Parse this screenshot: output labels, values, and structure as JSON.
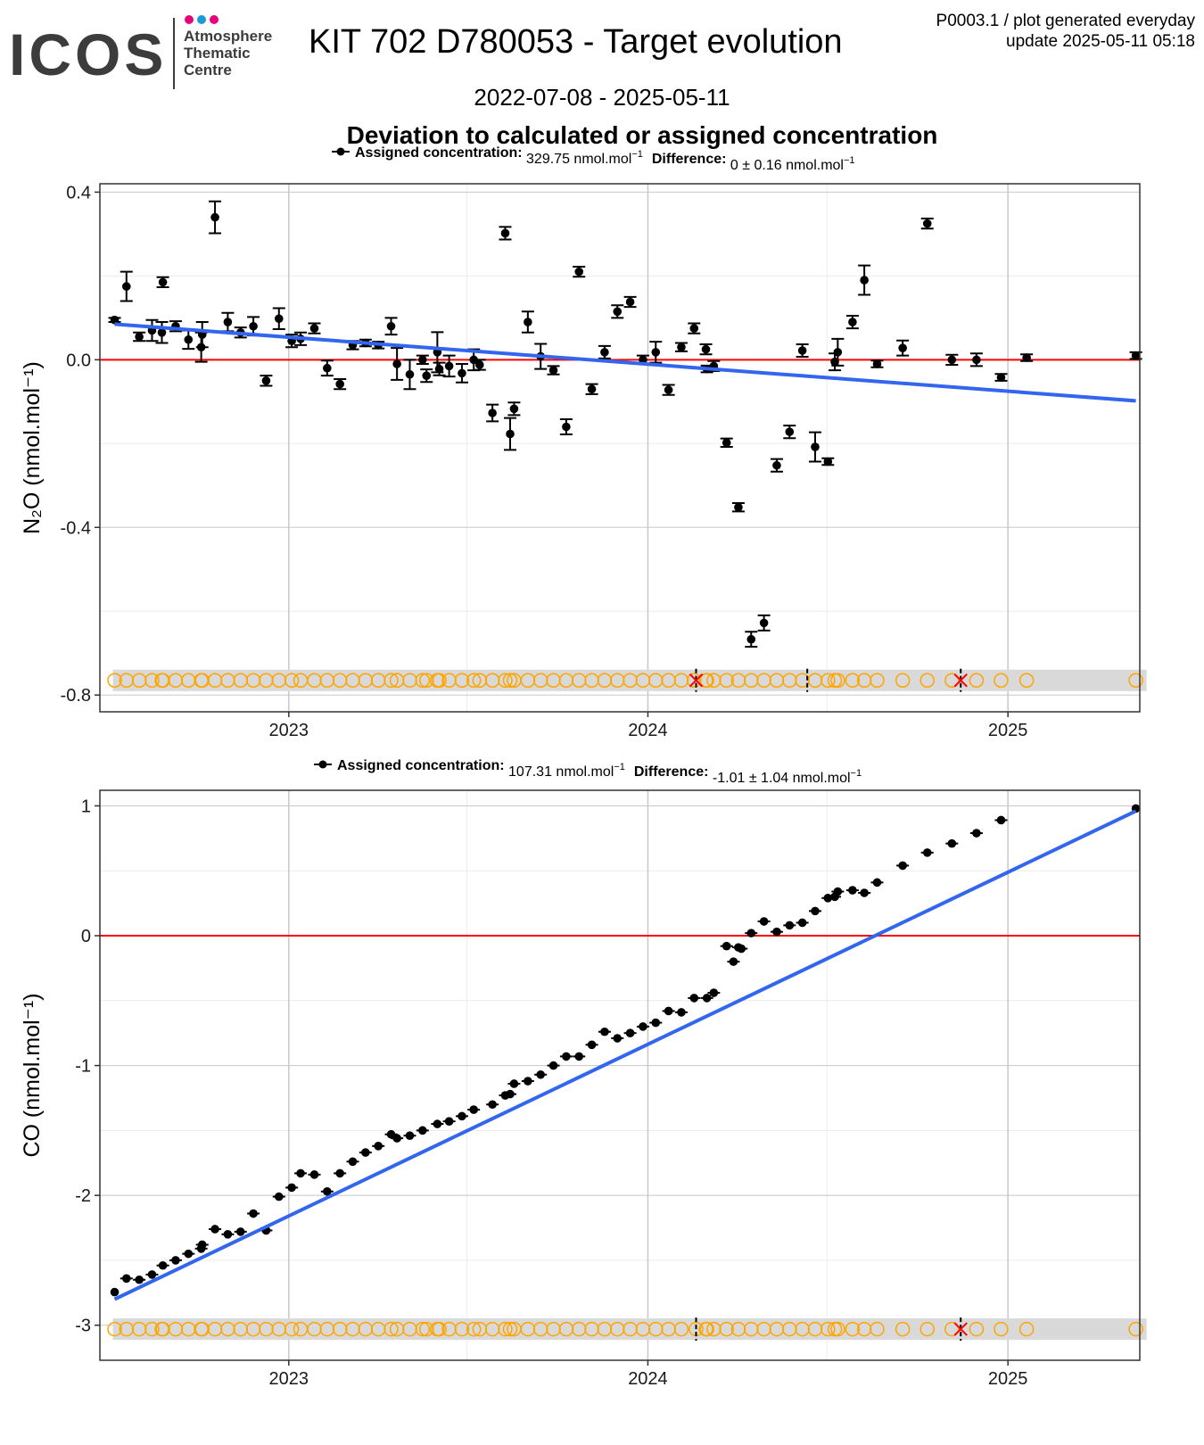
{
  "header": {
    "logo_text": "ICOS",
    "logo_sub": [
      "Atmosphere",
      "Thematic",
      "Centre"
    ],
    "logo_dot_colors": [
      "#e6007e",
      "#1a9ad6",
      "#e6007e"
    ],
    "title": "KIT 702 D780053 - Target evolution",
    "date_range": "2022-07-08 - 2025-05-11",
    "section_title": "Deviation to calculated or assigned concentration",
    "info_line1": "P0003.1 / plot generated everyday",
    "info_line2": "update  2025-05-11 05:18"
  },
  "colors": {
    "points": "#000000",
    "zero_line": "#ff0000",
    "trend_line": "#3366ee",
    "flag_circle": "#ffa500",
    "flag_cross": "#ff0000",
    "flag_band": "#d9d9d9",
    "grid_major": "#c8c8c8",
    "grid_minor": "#ececec"
  },
  "chart_data": [
    {
      "type": "scatter",
      "ylabel": "N₂O (nmol.mol⁻¹)",
      "legend": {
        "assigned_label": "Assigned concentration:",
        "assigned_value": "329.75 nmol.mol",
        "difference_label": "Difference:",
        "difference_value": "0 ± 0.16 nmol.mol",
        "unit_exponent": "−1"
      },
      "xlim": [
        "2022-06-23",
        "2025-05-15"
      ],
      "ylim": [
        -0.84,
        0.42
      ],
      "x_ticks": [
        "2023",
        "2024",
        "2025"
      ],
      "y_ticks": [
        0.4,
        0.0,
        -0.4,
        -0.8
      ],
      "y_tick_labels": [
        "0.4",
        "0.0",
        "-0.4",
        "-0.8"
      ],
      "flag_y": -0.765,
      "trend": {
        "start": [
          "2022-07-08",
          0.085
        ],
        "end": [
          "2025-05-11",
          -0.098
        ]
      },
      "series": [
        {
          "values": [
            [
              "2022-07-08",
              0.095,
              0.005
            ],
            [
              "2022-07-20",
              0.175,
              0.035
            ],
            [
              "2022-08-02",
              0.055,
              0.01
            ],
            [
              "2022-08-15",
              0.07,
              0.025
            ],
            [
              "2022-08-25",
              0.065,
              0.025
            ],
            [
              "2022-08-26",
              0.185,
              0.012
            ],
            [
              "2022-09-08",
              0.08,
              0.012
            ],
            [
              "2022-09-21",
              0.048,
              0.022
            ],
            [
              "2022-10-04",
              0.03,
              0.035
            ],
            [
              "2022-10-05",
              0.06,
              0.03
            ],
            [
              "2022-10-18",
              0.34,
              0.038
            ],
            [
              "2022-10-31",
              0.09,
              0.022
            ],
            [
              "2022-11-13",
              0.065,
              0.012
            ],
            [
              "2022-11-26",
              0.08,
              0.022
            ],
            [
              "2022-12-09",
              -0.05,
              0.012
            ],
            [
              "2022-12-22",
              0.098,
              0.025
            ],
            [
              "2023-01-04",
              0.045,
              0.015
            ],
            [
              "2023-01-13",
              0.05,
              0.015
            ],
            [
              "2023-01-27",
              0.075,
              0.012
            ],
            [
              "2023-02-09",
              -0.02,
              0.018
            ],
            [
              "2023-02-22",
              -0.058,
              0.012
            ],
            [
              "2023-03-07",
              0.035,
              0.01
            ],
            [
              "2023-03-20",
              0.04,
              0.008
            ],
            [
              "2023-04-02",
              0.035,
              0.008
            ],
            [
              "2023-04-15",
              0.08,
              0.02
            ],
            [
              "2023-04-21",
              -0.01,
              0.038
            ],
            [
              "2023-05-04",
              -0.035,
              0.035
            ],
            [
              "2023-05-17",
              0.0,
              0.01
            ],
            [
              "2023-05-21",
              -0.038,
              0.015
            ],
            [
              "2023-06-01",
              0.018,
              0.048
            ],
            [
              "2023-06-03",
              -0.022,
              0.015
            ],
            [
              "2023-06-13",
              -0.015,
              0.025
            ],
            [
              "2023-06-26",
              -0.032,
              0.022
            ],
            [
              "2023-07-08",
              0.0,
              0.025
            ],
            [
              "2023-07-14",
              -0.012,
              0.012
            ],
            [
              "2023-07-27",
              -0.127,
              0.02
            ],
            [
              "2023-08-09",
              0.302,
              0.015
            ],
            [
              "2023-08-14",
              -0.177,
              0.038
            ],
            [
              "2023-08-18",
              -0.117,
              0.015
            ],
            [
              "2023-09-01",
              0.09,
              0.025
            ],
            [
              "2023-09-14",
              0.008,
              0.03
            ],
            [
              "2023-09-27",
              -0.025,
              0.01
            ],
            [
              "2023-10-10",
              -0.16,
              0.018
            ],
            [
              "2023-10-23",
              0.21,
              0.012
            ],
            [
              "2023-11-05",
              -0.07,
              0.012
            ],
            [
              "2023-11-18",
              0.018,
              0.015
            ],
            [
              "2023-12-01",
              0.115,
              0.015
            ],
            [
              "2023-12-14",
              0.138,
              0.012
            ],
            [
              "2023-12-27",
              0.0,
              0.01
            ],
            [
              "2024-01-09",
              0.018,
              0.025
            ],
            [
              "2024-01-22",
              -0.072,
              0.012
            ],
            [
              "2024-02-04",
              0.03,
              0.01
            ],
            [
              "2024-02-17",
              0.075,
              0.012
            ],
            [
              "2024-02-29",
              0.025,
              0.012
            ],
            [
              "2024-03-01",
              -0.022,
              0.008
            ],
            [
              "2024-03-08",
              -0.015,
              0.012
            ],
            [
              "2024-03-21",
              -0.198,
              0.01
            ],
            [
              "2024-04-02",
              -0.352,
              0.01
            ],
            [
              "2024-04-15",
              -0.667,
              0.018
            ],
            [
              "2024-04-28",
              -0.628,
              0.018
            ],
            [
              "2024-05-11",
              -0.252,
              0.015
            ],
            [
              "2024-05-24",
              -0.172,
              0.015
            ],
            [
              "2024-06-06",
              0.022,
              0.015
            ],
            [
              "2024-06-19",
              -0.208,
              0.035
            ],
            [
              "2024-07-02",
              -0.243,
              0.008
            ],
            [
              "2024-07-09",
              -0.005,
              0.02
            ],
            [
              "2024-07-12",
              0.018,
              0.032
            ],
            [
              "2024-07-27",
              0.09,
              0.015
            ],
            [
              "2024-08-08",
              0.19,
              0.035
            ],
            [
              "2024-08-21",
              -0.01,
              0.008
            ],
            [
              "2024-09-16",
              0.028,
              0.018
            ],
            [
              "2024-10-11",
              0.325,
              0.012
            ],
            [
              "2024-11-05",
              0.0,
              0.012
            ],
            [
              "2024-11-30",
              0.0,
              0.015
            ],
            [
              "2024-12-25",
              -0.042,
              0.008
            ],
            [
              "2025-01-20",
              0.005,
              0.008
            ],
            [
              "2025-05-11",
              0.01,
              0.008
            ]
          ]
        }
      ],
      "flags": {
        "circles": [
          "2022-07-08",
          "2022-07-20",
          "2022-08-02",
          "2022-08-15",
          "2022-08-25",
          "2022-08-26",
          "2022-09-08",
          "2022-09-21",
          "2022-10-04",
          "2022-10-05",
          "2022-10-18",
          "2022-10-31",
          "2022-11-13",
          "2022-11-26",
          "2022-12-09",
          "2022-12-22",
          "2023-01-04",
          "2023-01-13",
          "2023-01-27",
          "2023-02-09",
          "2023-02-22",
          "2023-03-07",
          "2023-03-20",
          "2023-04-02",
          "2023-04-15",
          "2023-04-21",
          "2023-05-04",
          "2023-05-17",
          "2023-05-21",
          "2023-06-01",
          "2023-06-03",
          "2023-06-13",
          "2023-06-26",
          "2023-07-08",
          "2023-07-14",
          "2023-07-27",
          "2023-08-09",
          "2023-08-14",
          "2023-08-18",
          "2023-09-01",
          "2023-09-14",
          "2023-09-27",
          "2023-10-10",
          "2023-10-23",
          "2023-11-05",
          "2023-11-18",
          "2023-12-01",
          "2023-12-14",
          "2023-12-27",
          "2024-01-09",
          "2024-01-22",
          "2024-02-04",
          "2024-02-17",
          "2024-02-29",
          "2024-03-01",
          "2024-03-08",
          "2024-03-21",
          "2024-04-02",
          "2024-04-15",
          "2024-04-28",
          "2024-05-11",
          "2024-05-24",
          "2024-06-06",
          "2024-06-19",
          "2024-07-02",
          "2024-07-09",
          "2024-07-12",
          "2024-07-27",
          "2024-08-08",
          "2024-08-21",
          "2024-09-16",
          "2024-10-11",
          "2024-11-05",
          "2024-11-30",
          "2024-12-25",
          "2025-01-20",
          "2025-05-11"
        ],
        "crosses": [
          "2024-02-19",
          "2024-11-14"
        ],
        "ticks": [
          "2024-06-11"
        ]
      }
    },
    {
      "type": "scatter",
      "ylabel": "CO (nmol.mol⁻¹)",
      "legend": {
        "assigned_label": "Assigned concentration:",
        "assigned_value": "107.31 nmol.mol",
        "difference_label": "Difference:",
        "difference_value": "-1.01 ± 1.04 nmol.mol",
        "unit_exponent": "−1"
      },
      "xlim": [
        "2022-06-23",
        "2025-05-15"
      ],
      "ylim": [
        -3.27,
        1.12
      ],
      "x_ticks": [
        "2023",
        "2024",
        "2025"
      ],
      "y_ticks": [
        1,
        0,
        -1,
        -2,
        -3
      ],
      "y_tick_labels": [
        "1",
        "0",
        "-1",
        "-2",
        "-3"
      ],
      "flag_y": -3.03,
      "trend": {
        "start": [
          "2022-07-08",
          -2.8
        ],
        "end": [
          "2025-05-11",
          0.96
        ]
      },
      "series": [
        {
          "values": [
            [
              "2022-07-08",
              -2.745
            ],
            [
              "2022-07-20",
              -2.64
            ],
            [
              "2022-08-02",
              -2.65
            ],
            [
              "2022-08-15",
              -2.61
            ],
            [
              "2022-08-26",
              -2.54
            ],
            [
              "2022-09-08",
              -2.5
            ],
            [
              "2022-09-21",
              -2.45
            ],
            [
              "2022-10-04",
              -2.41
            ],
            [
              "2022-10-05",
              -2.38
            ],
            [
              "2022-10-18",
              -2.26
            ],
            [
              "2022-10-31",
              -2.3
            ],
            [
              "2022-11-13",
              -2.28
            ],
            [
              "2022-11-26",
              -2.14
            ],
            [
              "2022-12-09",
              -2.27
            ],
            [
              "2022-12-22",
              -2.01
            ],
            [
              "2023-01-04",
              -1.94
            ],
            [
              "2023-01-13",
              -1.83
            ],
            [
              "2023-01-27",
              -1.84
            ],
            [
              "2023-02-09",
              -1.97
            ],
            [
              "2023-02-22",
              -1.83
            ],
            [
              "2023-03-07",
              -1.74
            ],
            [
              "2023-03-20",
              -1.67
            ],
            [
              "2023-04-02",
              -1.62
            ],
            [
              "2023-04-15",
              -1.53
            ],
            [
              "2023-04-21",
              -1.56
            ],
            [
              "2023-05-04",
              -1.54
            ],
            [
              "2023-05-17",
              -1.5
            ],
            [
              "2023-06-01",
              -1.45
            ],
            [
              "2023-06-13",
              -1.43
            ],
            [
              "2023-06-26",
              -1.39
            ],
            [
              "2023-07-08",
              -1.34
            ],
            [
              "2023-07-27",
              -1.3
            ],
            [
              "2023-08-09",
              -1.23
            ],
            [
              "2023-08-14",
              -1.22
            ],
            [
              "2023-08-18",
              -1.14
            ],
            [
              "2023-09-01",
              -1.12
            ],
            [
              "2023-09-14",
              -1.07
            ],
            [
              "2023-09-27",
              -1.0
            ],
            [
              "2023-10-10",
              -0.93
            ],
            [
              "2023-10-23",
              -0.93
            ],
            [
              "2023-11-05",
              -0.84
            ],
            [
              "2023-11-18",
              -0.74
            ],
            [
              "2023-12-01",
              -0.79
            ],
            [
              "2023-12-14",
              -0.75
            ],
            [
              "2023-12-27",
              -0.7
            ],
            [
              "2024-01-09",
              -0.67
            ],
            [
              "2024-01-22",
              -0.58
            ],
            [
              "2024-02-04",
              -0.59
            ],
            [
              "2024-02-17",
              -0.48
            ],
            [
              "2024-03-01",
              -0.48
            ],
            [
              "2024-03-08",
              -0.44
            ],
            [
              "2024-03-21",
              -0.08
            ],
            [
              "2024-03-28",
              -0.2
            ],
            [
              "2024-04-02",
              -0.09
            ],
            [
              "2024-04-05",
              -0.1
            ],
            [
              "2024-04-15",
              0.02
            ],
            [
              "2024-04-28",
              0.11
            ],
            [
              "2024-05-11",
              0.03
            ],
            [
              "2024-05-24",
              0.08
            ],
            [
              "2024-06-06",
              0.1
            ],
            [
              "2024-06-19",
              0.19
            ],
            [
              "2024-07-02",
              0.29
            ],
            [
              "2024-07-09",
              0.3
            ],
            [
              "2024-07-12",
              0.34
            ],
            [
              "2024-07-27",
              0.35
            ],
            [
              "2024-08-08",
              0.33
            ],
            [
              "2024-08-21",
              0.41
            ],
            [
              "2024-09-16",
              0.54
            ],
            [
              "2024-10-11",
              0.64
            ],
            [
              "2024-11-05",
              0.71
            ],
            [
              "2024-11-30",
              0.79
            ],
            [
              "2024-12-25",
              0.89
            ],
            [
              "2025-05-11",
              0.98
            ]
          ]
        }
      ],
      "flags": {
        "circles": [
          "2022-07-08",
          "2022-07-20",
          "2022-08-02",
          "2022-08-15",
          "2022-08-25",
          "2022-08-26",
          "2022-09-08",
          "2022-09-21",
          "2022-10-04",
          "2022-10-05",
          "2022-10-18",
          "2022-10-31",
          "2022-11-13",
          "2022-11-26",
          "2022-12-09",
          "2022-12-22",
          "2023-01-04",
          "2023-01-13",
          "2023-01-27",
          "2023-02-09",
          "2023-02-22",
          "2023-03-07",
          "2023-03-20",
          "2023-04-02",
          "2023-04-15",
          "2023-04-21",
          "2023-05-04",
          "2023-05-17",
          "2023-05-21",
          "2023-06-01",
          "2023-06-03",
          "2023-06-13",
          "2023-06-26",
          "2023-07-08",
          "2023-07-14",
          "2023-07-27",
          "2023-08-09",
          "2023-08-14",
          "2023-08-18",
          "2023-09-01",
          "2023-09-14",
          "2023-09-27",
          "2023-10-10",
          "2023-10-23",
          "2023-11-05",
          "2023-11-18",
          "2023-12-01",
          "2023-12-14",
          "2023-12-27",
          "2024-01-09",
          "2024-01-22",
          "2024-02-04",
          "2024-02-19",
          "2024-02-29",
          "2024-03-01",
          "2024-03-08",
          "2024-03-21",
          "2024-04-02",
          "2024-04-15",
          "2024-04-28",
          "2024-05-11",
          "2024-05-24",
          "2024-06-06",
          "2024-06-19",
          "2024-07-02",
          "2024-07-09",
          "2024-07-12",
          "2024-07-27",
          "2024-08-08",
          "2024-08-21",
          "2024-09-16",
          "2024-10-11",
          "2024-11-05",
          "2024-11-30",
          "2024-12-25",
          "2025-01-20",
          "2025-05-11"
        ],
        "crosses": [
          "2024-11-14"
        ],
        "ticks": [
          "2024-02-19"
        ]
      }
    }
  ]
}
